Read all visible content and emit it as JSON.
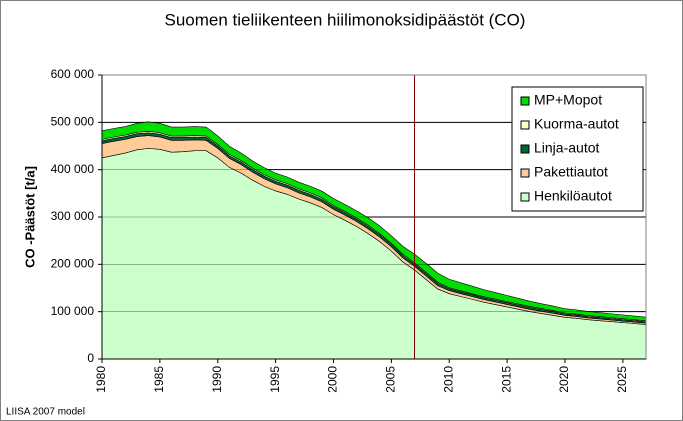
{
  "chart_data": {
    "type": "stacked_area",
    "title": "Suomen tieliikenteen hiilimonoksidipäästöt (CO)",
    "y_label": "CO -Päästöt [t/a]",
    "footnote": "LIISA 2007 model",
    "x": [
      1980,
      1981,
      1982,
      1983,
      1984,
      1985,
      1986,
      1987,
      1988,
      1989,
      1990,
      1991,
      1992,
      1993,
      1994,
      1995,
      1996,
      1997,
      1998,
      1999,
      2000,
      2001,
      2002,
      2003,
      2004,
      2005,
      2006,
      2007,
      2008,
      2009,
      2010,
      2011,
      2012,
      2013,
      2014,
      2015,
      2016,
      2017,
      2018,
      2019,
      2020,
      2021,
      2022,
      2023,
      2024,
      2025,
      2026,
      2027
    ],
    "xlim": [
      1980,
      2027
    ],
    "xticks": [
      1980,
      1985,
      1990,
      1995,
      2000,
      2005,
      2010,
      2015,
      2020,
      2025
    ],
    "ylim": [
      0,
      600000
    ],
    "yticks": [
      0,
      {
        "value": 100000,
        "label": "100 000"
      },
      {
        "value": 200000,
        "label": "200 000"
      },
      {
        "value": 300000,
        "label": "300 000"
      },
      {
        "value": 400000,
        "label": "400 000"
      },
      {
        "value": 500000,
        "label": "500 000"
      },
      {
        "value": 600000,
        "label": "600 000"
      }
    ],
    "grid": true,
    "vline": 2007,
    "legend": "upper right",
    "series": [
      {
        "name": "Henkilöautot",
        "color": "#ccffcc",
        "values": [
          425000,
          430000,
          435000,
          442000,
          445000,
          443000,
          437000,
          438000,
          440000,
          440000,
          425000,
          405000,
          393000,
          378000,
          365000,
          355000,
          348000,
          338000,
          330000,
          320000,
          305000,
          293000,
          280000,
          265000,
          248000,
          228000,
          205000,
          188000,
          168000,
          148000,
          138000,
          132000,
          126000,
          120000,
          115000,
          110000,
          105000,
          100000,
          96000,
          92000,
          88000,
          86000,
          83000,
          81000,
          79000,
          77000,
          75000,
          73000
        ]
      },
      {
        "name": "Pakettiautot",
        "color": "#ffcc99",
        "values": [
          30000,
          30000,
          29000,
          28000,
          27000,
          26000,
          25000,
          24000,
          23000,
          22000,
          20000,
          19000,
          18000,
          17000,
          16000,
          15000,
          14000,
          13000,
          12500,
          12000,
          11500,
          11000,
          10500,
          10000,
          9500,
          9000,
          8500,
          8000,
          7500,
          7000,
          6500,
          6000,
          5800,
          5600,
          5400,
          5200,
          5000,
          4800,
          4600,
          4400,
          4200,
          4000,
          3800,
          3600,
          3400,
          3200,
          3000,
          2800
        ]
      },
      {
        "name": "Linja-autot",
        "color": "#006633",
        "values": [
          6000,
          6000,
          6000,
          6000,
          6000,
          6000,
          6000,
          6000,
          6000,
          6000,
          5500,
          5500,
          5500,
          5500,
          5500,
          5500,
          5500,
          5500,
          5500,
          5500,
          5000,
          5000,
          5000,
          5000,
          5000,
          5000,
          5000,
          5000,
          5000,
          5000,
          4000,
          4000,
          4000,
          4000,
          4000,
          4000,
          4000,
          4000,
          4000,
          4000,
          3000,
          3000,
          3000,
          3000,
          3000,
          3000,
          3000,
          3000
        ]
      },
      {
        "name": "Kuorma-autot",
        "color": "#ffffcc",
        "values": [
          3000,
          3000,
          3000,
          3000,
          3000,
          3000,
          3000,
          3000,
          3000,
          3000,
          3000,
          3000,
          3000,
          3000,
          3000,
          3000,
          3000,
          3000,
          3000,
          3000,
          2500,
          2500,
          2500,
          2500,
          2500,
          2500,
          2500,
          2500,
          2500,
          2500,
          2000,
          2000,
          2000,
          2000,
          2000,
          2000,
          2000,
          2000,
          2000,
          2000,
          2000,
          2000,
          2000,
          2000,
          2000,
          2000,
          2000,
          2000
        ]
      },
      {
        "name": "MP+Mopot",
        "color": "#00dd00",
        "values": [
          18000,
          18000,
          18000,
          19000,
          20000,
          20000,
          19000,
          19000,
          19000,
          19000,
          18000,
          17000,
          16000,
          15000,
          15000,
          14000,
          14000,
          14000,
          14000,
          14000,
          15000,
          15000,
          15000,
          16000,
          16000,
          16000,
          17000,
          18000,
          19000,
          19000,
          18000,
          17000,
          16000,
          15000,
          14000,
          13000,
          12000,
          11000,
          10000,
          9500,
          9000,
          8800,
          8600,
          8400,
          8200,
          8000,
          7800,
          7600
        ]
      }
    ]
  }
}
